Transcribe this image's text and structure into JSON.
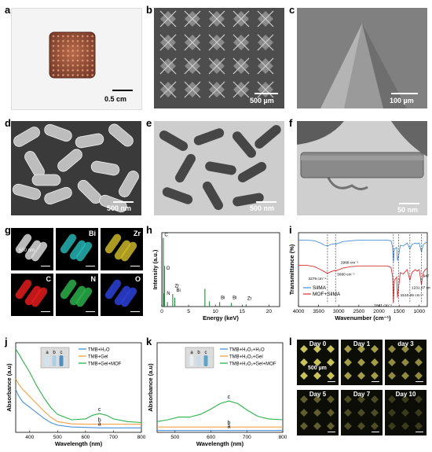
{
  "panels": {
    "a": {
      "label": "a",
      "scale": "0.5 cm"
    },
    "b": {
      "label": "b",
      "scale": "500 µm"
    },
    "c": {
      "label": "c",
      "scale": "100 µm"
    },
    "d": {
      "label": "d",
      "scale": "500 nm"
    },
    "e": {
      "label": "e",
      "scale": "500 nm"
    },
    "f": {
      "label": "f",
      "scale": "50 nm"
    },
    "g": {
      "label": "g",
      "scale": "500 nm",
      "maps": [
        "",
        "Bi",
        "Zr",
        "C",
        "N",
        "O"
      ],
      "map_colors": [
        "#d9d9d9",
        "#27b3b3",
        "#c9b62a",
        "#e21c1c",
        "#2cb04a",
        "#2b3fd6"
      ]
    },
    "h": {
      "label": "h"
    },
    "i": {
      "label": "i"
    },
    "j": {
      "label": "j"
    },
    "k": {
      "label": "k"
    },
    "l": {
      "label": "l",
      "days": [
        "Day 0",
        "Day 1",
        "day 3",
        "Day 5",
        "Day 7",
        "Day 10"
      ],
      "scale": "500 µm",
      "spot_intensity": [
        1.0,
        0.8,
        0.7,
        0.45,
        0.35,
        0.25
      ]
    }
  },
  "chart_data": [
    {
      "id": "h",
      "type": "line",
      "xlabel": "Energy (keV)",
      "ylabel": "Intensity (a.u.)",
      "xlim": [
        0,
        22
      ],
      "xticks": [
        "0",
        "5",
        "10",
        "15",
        "20"
      ],
      "annotations": [
        "C",
        "O",
        "N",
        "Zr",
        "Bi",
        "Bi",
        "Bi",
        "Zr"
      ],
      "peaks": [
        {
          "x": 0.28,
          "h": 0.93
        },
        {
          "x": 0.39,
          "h": 0.18
        },
        {
          "x": 0.52,
          "h": 0.55
        },
        {
          "x": 1.05,
          "h": 0.06
        },
        {
          "x": 2.04,
          "h": 0.17
        },
        {
          "x": 2.42,
          "h": 0.12
        },
        {
          "x": 8.05,
          "h": 0.24
        },
        {
          "x": 8.9,
          "h": 0.07
        },
        {
          "x": 10.8,
          "h": 0.06
        },
        {
          "x": 13.0,
          "h": 0.05
        },
        {
          "x": 15.75,
          "h": 0.03
        }
      ]
    },
    {
      "id": "i",
      "type": "line",
      "xlabel": "Wavenumber (cm⁻¹)",
      "ylabel": "Transmittance (%)",
      "xlim": [
        4000,
        800
      ],
      "xticks": [
        "4000",
        "3500",
        "3000",
        "2500",
        "2000",
        "1500",
        "1000"
      ],
      "annotations": [
        "3279 cm⁻¹",
        "2988 cm⁻¹",
        "3080 cm⁻¹",
        "1641 cm⁻¹",
        "1510.26 cm⁻¹",
        "1231.07 cm⁻¹",
        "947 cm⁻¹"
      ],
      "series": [
        {
          "name": "SilMA",
          "color": "#4a90d9",
          "x": [
            4000,
            3800,
            3600,
            3450,
            3350,
            3279,
            3200,
            3100,
            3080,
            3000,
            2988,
            2900,
            2700,
            2500,
            2300,
            2100,
            1900,
            1800,
            1700,
            1660,
            1641,
            1620,
            1560,
            1540,
            1510,
            1470,
            1400,
            1300,
            1231,
            1180,
            1100,
            1050,
            1000,
            947,
            900,
            850,
            800
          ],
          "y": [
            0.9,
            0.9,
            0.89,
            0.86,
            0.83,
            0.82,
            0.84,
            0.85,
            0.84,
            0.86,
            0.86,
            0.88,
            0.89,
            0.9,
            0.9,
            0.9,
            0.9,
            0.9,
            0.89,
            0.8,
            0.6,
            0.78,
            0.8,
            0.62,
            0.7,
            0.83,
            0.82,
            0.86,
            0.78,
            0.84,
            0.86,
            0.85,
            0.86,
            0.74,
            0.84,
            0.86,
            0.88
          ]
        },
        {
          "name": "MOF+SilMA",
          "color": "#e03030",
          "x": [
            4000,
            3800,
            3600,
            3450,
            3350,
            3279,
            3200,
            3100,
            3080,
            3000,
            2988,
            2900,
            2700,
            2500,
            2300,
            2100,
            1900,
            1800,
            1700,
            1660,
            1641,
            1620,
            1560,
            1540,
            1510,
            1470,
            1400,
            1300,
            1231,
            1180,
            1100,
            1050,
            1000,
            947,
            900,
            850,
            800
          ],
          "y": [
            0.56,
            0.56,
            0.54,
            0.5,
            0.47,
            0.45,
            0.47,
            0.49,
            0.48,
            0.5,
            0.5,
            0.52,
            0.54,
            0.55,
            0.55,
            0.55,
            0.55,
            0.55,
            0.53,
            0.4,
            0.05,
            0.35,
            0.4,
            0.12,
            0.28,
            0.46,
            0.44,
            0.5,
            0.36,
            0.46,
            0.5,
            0.48,
            0.5,
            0.3,
            0.46,
            0.5,
            0.52
          ]
        }
      ]
    },
    {
      "id": "j",
      "type": "line",
      "xlabel": "Wavelength (nm)",
      "ylabel": "Absorbance (a.u)",
      "xlim": [
        350,
        800
      ],
      "xticks": [
        "400",
        "500",
        "600",
        "700",
        "800"
      ],
      "curve_labels": [
        "a",
        "b",
        "c"
      ],
      "inset_labels": [
        "a",
        "b",
        "c"
      ],
      "series": [
        {
          "name": "TMB+H₂O",
          "color": "#4a90d9",
          "x": [
            350,
            360,
            375,
            400,
            425,
            450,
            475,
            500,
            550,
            600,
            650,
            700,
            750,
            800
          ],
          "y": [
            0.48,
            0.41,
            0.34,
            0.28,
            0.22,
            0.16,
            0.11,
            0.08,
            0.06,
            0.055,
            0.05,
            0.05,
            0.05,
            0.05
          ]
        },
        {
          "name": "TMB+Gel",
          "color": "#f5a142",
          "x": [
            350,
            360,
            375,
            400,
            425,
            450,
            475,
            500,
            550,
            600,
            650,
            700,
            750,
            800
          ],
          "y": [
            0.6,
            0.54,
            0.48,
            0.4,
            0.32,
            0.24,
            0.17,
            0.12,
            0.095,
            0.09,
            0.09,
            0.09,
            0.09,
            0.09
          ]
        },
        {
          "name": "TMB+Gel+MOF",
          "color": "#2db24a",
          "x": [
            350,
            360,
            375,
            400,
            425,
            450,
            475,
            500,
            550,
            600,
            625,
            650,
            675,
            700,
            750,
            800
          ],
          "y": [
            0.93,
            0.88,
            0.8,
            0.67,
            0.52,
            0.39,
            0.28,
            0.2,
            0.14,
            0.15,
            0.19,
            0.21,
            0.19,
            0.15,
            0.12,
            0.11
          ]
        }
      ]
    },
    {
      "id": "k",
      "type": "line",
      "xlabel": "Wavelength (nm)",
      "ylabel": "Absorbance (a.u)",
      "xlim": [
        450,
        800
      ],
      "xticks": [
        "500",
        "600",
        "700",
        "800"
      ],
      "curve_labels": [
        "a",
        "b",
        "c"
      ],
      "inset_labels": [
        "a",
        "b",
        "c"
      ],
      "series": [
        {
          "name": "TMB+H₂O₂+H₂O",
          "color": "#4a90d9",
          "x": [
            450,
            500,
            550,
            600,
            650,
            700,
            750,
            800
          ],
          "y": [
            0.02,
            0.02,
            0.02,
            0.02,
            0.02,
            0.02,
            0.02,
            0.02
          ]
        },
        {
          "name": "TMB+H₂O₂+Gel",
          "color": "#f5a142",
          "x": [
            450,
            500,
            550,
            600,
            650,
            700,
            750,
            800
          ],
          "y": [
            0.06,
            0.06,
            0.06,
            0.06,
            0.06,
            0.06,
            0.06,
            0.06
          ]
        },
        {
          "name": "TMB+H₂O₂+Gel+MOF",
          "color": "#2db24a",
          "x": [
            450,
            480,
            510,
            540,
            570,
            600,
            625,
            650,
            675,
            700,
            730,
            760,
            800
          ],
          "y": [
            0.12,
            0.14,
            0.17,
            0.17,
            0.2,
            0.26,
            0.32,
            0.35,
            0.32,
            0.25,
            0.18,
            0.15,
            0.14
          ]
        }
      ]
    }
  ]
}
